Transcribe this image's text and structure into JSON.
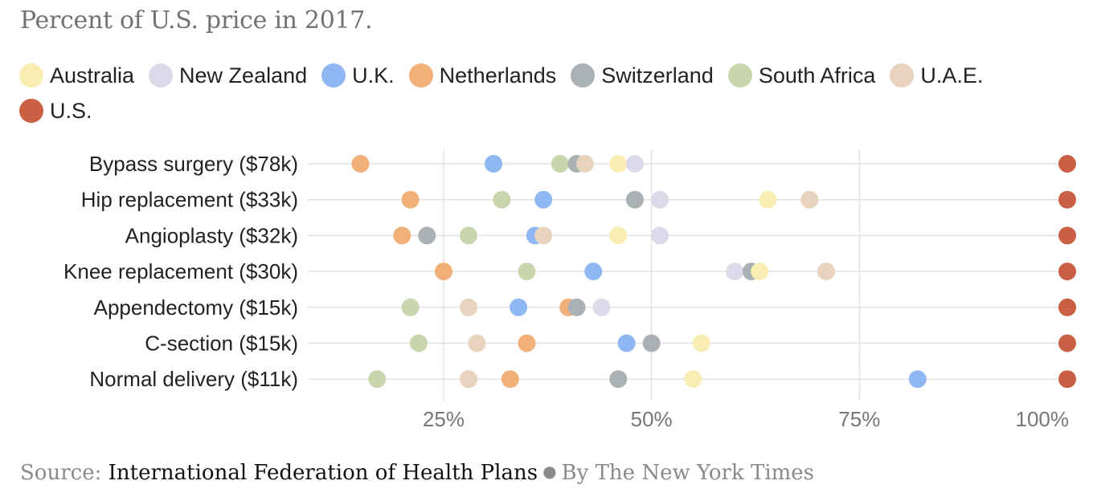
{
  "title": "Percent of U.S. price in 2017.",
  "legend": [
    {
      "name": "Australia",
      "color": "#f8eeb4"
    },
    {
      "name": "New Zealand",
      "color": "#dcdaea"
    },
    {
      "name": "U.K.",
      "color": "#8fb8f3"
    },
    {
      "name": "Netherlands",
      "color": "#f0b077"
    },
    {
      "name": "Switzerland",
      "color": "#a9b1b5"
    },
    {
      "name": "South Africa",
      "color": "#c9d6ad"
    },
    {
      "name": "U.A.E.",
      "color": "#e7d3be"
    },
    {
      "name": "U.S.",
      "color": "#cb5f43"
    }
  ],
  "footer": {
    "source_label": "Source:",
    "source_name": "International Federation of Health Plans",
    "byline": "By The New York Times"
  },
  "chart_data": {
    "type": "scatter",
    "title": "Percent of U.S. price in 2017.",
    "xlabel": "",
    "ylabel": "",
    "xlim": [
      8,
      100
    ],
    "x_ticks": [
      25,
      50,
      75,
      100
    ],
    "x_tick_labels": [
      "25%",
      "50%",
      "75%",
      "100%"
    ],
    "grid": true,
    "legend_position": "top-left",
    "categories": [
      "Bypass surgery ($78k)",
      "Hip replacement ($33k)",
      "Angioplasty ($32k)",
      "Knee replacement ($30k)",
      "Appendectomy ($15k)",
      "C-section ($15k)",
      "Normal delivery ($11k)"
    ],
    "series": [
      {
        "name": "Australia",
        "color": "#f8eeb4",
        "values": [
          46,
          64,
          46,
          63,
          null,
          56,
          55
        ]
      },
      {
        "name": "New Zealand",
        "color": "#dcdaea",
        "values": [
          48,
          51,
          51,
          60,
          44,
          null,
          null
        ]
      },
      {
        "name": "U.K.",
        "color": "#8fb8f3",
        "values": [
          31,
          37,
          36,
          43,
          34,
          47,
          82
        ]
      },
      {
        "name": "Netherlands",
        "color": "#f0b077",
        "values": [
          15,
          21,
          20,
          25,
          40,
          35,
          33
        ]
      },
      {
        "name": "Switzerland",
        "color": "#a9b1b5",
        "values": [
          41,
          48,
          23,
          62,
          41,
          50,
          46
        ]
      },
      {
        "name": "South Africa",
        "color": "#c9d6ad",
        "values": [
          39,
          32,
          28,
          35,
          21,
          22,
          17
        ]
      },
      {
        "name": "U.A.E.",
        "color": "#e7d3be",
        "values": [
          42,
          69,
          37,
          71,
          28,
          29,
          28
        ]
      },
      {
        "name": "U.S.",
        "color": "#cb5f43",
        "values": [
          100,
          100,
          100,
          100,
          100,
          100,
          100
        ]
      }
    ]
  }
}
